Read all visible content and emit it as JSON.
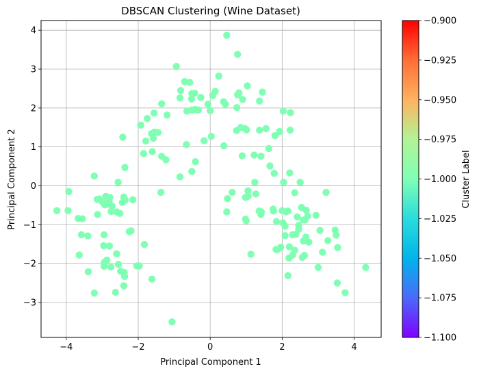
{
  "chart_data": {
    "type": "scatter",
    "title": "DBSCAN Clustering (Wine Dataset)",
    "xlabel": "Principal Component 1",
    "ylabel": "Principal Component 2",
    "xlim": [
      -4.7,
      4.75
    ],
    "ylim": [
      -3.9,
      4.25
    ],
    "xticks": [
      -4,
      -2,
      0,
      2,
      4
    ],
    "yticks": [
      -3,
      -2,
      -1,
      0,
      1,
      2,
      3,
      4
    ],
    "grid": true,
    "point_color": "#80ffb4",
    "colorbar": {
      "label": "Cluster Label",
      "range": [
        -1.1,
        -0.9
      ],
      "ticks": [
        "-0.900",
        "-0.925",
        "-0.950",
        "-0.975",
        "-1.000",
        "-1.025",
        "-1.050",
        "-1.075",
        "-1.100"
      ],
      "colormap": "rainbow"
    },
    "series": [
      {
        "cluster_label": -1,
        "points": [
          [
            0.46,
            3.87
          ],
          [
            0.76,
            3.38
          ],
          [
            -0.94,
            3.07
          ],
          [
            0.24,
            2.82
          ],
          [
            -0.71,
            2.68
          ],
          [
            -0.57,
            2.66
          ],
          [
            1.03,
            2.57
          ],
          [
            -0.82,
            2.45
          ],
          [
            1.45,
            2.41
          ],
          [
            0.14,
            2.43
          ],
          [
            -0.43,
            2.38
          ],
          [
            -0.51,
            2.37
          ],
          [
            0.76,
            2.34
          ],
          [
            0.8,
            2.39
          ],
          [
            -0.52,
            2.23
          ],
          [
            -0.84,
            2.26
          ],
          [
            -0.26,
            2.27
          ],
          [
            0.07,
            2.32
          ],
          [
            0.9,
            2.22
          ],
          [
            -1.35,
            2.11
          ],
          [
            0.37,
            2.16
          ],
          [
            0.42,
            2.1
          ],
          [
            -0.06,
            2.1
          ],
          [
            1.37,
            2.18
          ],
          [
            0.74,
            2.01
          ],
          [
            -0.51,
            1.95
          ],
          [
            -0.65,
            1.92
          ],
          [
            -0.33,
            1.95
          ],
          [
            -0.42,
            1.96
          ],
          [
            0.0,
            1.93
          ],
          [
            -1.75,
            1.73
          ],
          [
            -1.56,
            1.87
          ],
          [
            -1.2,
            1.82
          ],
          [
            -1.93,
            1.56
          ],
          [
            2.03,
            1.92
          ],
          [
            2.23,
            1.88
          ],
          [
            0.85,
            1.5
          ],
          [
            0.73,
            1.42
          ],
          [
            1.01,
            1.44
          ],
          [
            1.37,
            1.43
          ],
          [
            1.55,
            1.47
          ],
          [
            1.93,
            1.4
          ],
          [
            2.22,
            1.43
          ],
          [
            0.97,
            1.47
          ],
          [
            1.8,
            1.29
          ],
          [
            -1.55,
            1.38
          ],
          [
            -1.63,
            1.34
          ],
          [
            -1.45,
            1.37
          ],
          [
            -2.43,
            1.25
          ],
          [
            -1.58,
            1.22
          ],
          [
            -1.79,
            1.15
          ],
          [
            0.03,
            1.27
          ],
          [
            -0.17,
            1.16
          ],
          [
            -0.66,
            1.06
          ],
          [
            0.38,
            1.03
          ],
          [
            1.63,
            0.96
          ],
          [
            -1.85,
            0.83
          ],
          [
            -1.61,
            0.88
          ],
          [
            -1.35,
            0.76
          ],
          [
            -1.23,
            0.67
          ],
          [
            0.89,
            0.77
          ],
          [
            1.22,
            0.79
          ],
          [
            1.41,
            0.76
          ],
          [
            -0.41,
            0.62
          ],
          [
            1.66,
            0.51
          ],
          [
            2.21,
            0.33
          ],
          [
            1.78,
            0.32
          ],
          [
            -2.37,
            0.47
          ],
          [
            -0.51,
            0.37
          ],
          [
            -0.84,
            0.23
          ],
          [
            -3.22,
            0.25
          ],
          [
            -2.56,
            0.09
          ],
          [
            1.24,
            0.09
          ],
          [
            2.5,
            0.09
          ],
          [
            2.04,
            0.09
          ],
          [
            -3.93,
            -0.15
          ],
          [
            1.05,
            -0.13
          ],
          [
            0.61,
            -0.17
          ],
          [
            3.22,
            -0.17
          ],
          [
            1.27,
            -0.21
          ],
          [
            2.35,
            -0.18
          ],
          [
            -1.37,
            -0.17
          ],
          [
            0.48,
            -0.33
          ],
          [
            -3.08,
            -0.34
          ],
          [
            -2.9,
            -0.27
          ],
          [
            -2.79,
            -0.3
          ],
          [
            -2.99,
            -0.42
          ],
          [
            -2.81,
            -0.38
          ],
          [
            -2.4,
            -0.29
          ],
          [
            -2.36,
            -0.37
          ],
          [
            -2.44,
            -0.43
          ],
          [
            -2.15,
            -0.36
          ],
          [
            -2.85,
            -0.47
          ],
          [
            -2.93,
            -0.49
          ],
          [
            -3.14,
            -0.35
          ],
          [
            -2.73,
            -0.52
          ],
          [
            1.05,
            -0.27
          ],
          [
            0.98,
            -0.3
          ],
          [
            2.0,
            -0.64
          ],
          [
            2.67,
            -0.63
          ],
          [
            2.54,
            -0.56
          ],
          [
            2.71,
            -0.78
          ],
          [
            2.94,
            -0.76
          ],
          [
            1.75,
            -0.6
          ],
          [
            1.76,
            -0.65
          ],
          [
            2.16,
            -0.65
          ],
          [
            2.1,
            -0.67
          ],
          [
            1.36,
            -0.65
          ],
          [
            1.42,
            -0.67
          ],
          [
            1.41,
            -0.74
          ],
          [
            0.46,
            -0.67
          ],
          [
            -4.26,
            -0.64
          ],
          [
            -3.95,
            -0.64
          ],
          [
            -3.67,
            -0.84
          ],
          [
            -3.55,
            -0.85
          ],
          [
            -3.13,
            -0.74
          ],
          [
            -2.75,
            -0.66
          ],
          [
            -2.6,
            -0.67
          ],
          [
            -2.51,
            -0.71
          ],
          [
            2.42,
            -0.8
          ],
          [
            2.59,
            -0.88
          ],
          [
            2.46,
            -1.02
          ],
          [
            2.63,
            -0.88
          ],
          [
            0.98,
            -0.86
          ],
          [
            1.0,
            -0.9
          ],
          [
            2.02,
            -0.95
          ],
          [
            1.84,
            -0.92
          ],
          [
            2.08,
            -1.04
          ],
          [
            2.46,
            -1.12
          ],
          [
            2.38,
            -1.25
          ],
          [
            3.05,
            -1.15
          ],
          [
            3.47,
            -1.14
          ],
          [
            -2.2,
            -1.16
          ],
          [
            -2.25,
            -1.18
          ],
          [
            -3.58,
            -1.26
          ],
          [
            -3.4,
            -1.29
          ],
          [
            -2.95,
            -1.26
          ],
          [
            2.29,
            -1.26
          ],
          [
            2.66,
            -1.32
          ],
          [
            3.27,
            -1.41
          ],
          [
            3.5,
            -1.27
          ],
          [
            2.08,
            -1.28
          ],
          [
            -3.64,
            -1.78
          ],
          [
            -2.96,
            -1.54
          ],
          [
            -2.8,
            -1.55
          ],
          [
            -1.83,
            -1.51
          ],
          [
            -2.6,
            -1.75
          ],
          [
            -2.87,
            -1.91
          ],
          [
            2.59,
            -1.42
          ],
          [
            2.74,
            -1.45
          ],
          [
            2.2,
            -1.57
          ],
          [
            2.35,
            -1.66
          ],
          [
            1.96,
            -1.58
          ],
          [
            2.29,
            -1.78
          ],
          [
            2.56,
            -1.84
          ],
          [
            2.62,
            -1.79
          ],
          [
            3.54,
            -1.59
          ],
          [
            3.12,
            -1.71
          ],
          [
            1.87,
            -1.64
          ],
          [
            1.83,
            -1.64
          ],
          [
            -2.94,
            -1.97
          ],
          [
            -2.55,
            -2.02
          ],
          [
            -2.76,
            -2.09
          ],
          [
            -2.95,
            -2.07
          ],
          [
            -2.04,
            -2.06
          ],
          [
            -2.39,
            -2.23
          ],
          [
            -1.97,
            -2.06
          ],
          [
            1.13,
            -1.76
          ],
          [
            2.19,
            -1.86
          ],
          [
            3.0,
            -2.1
          ],
          [
            4.32,
            -2.1
          ],
          [
            -3.39,
            -2.21
          ],
          [
            -2.49,
            -2.2
          ],
          [
            -2.38,
            -2.33
          ],
          [
            -1.62,
            -2.4
          ],
          [
            2.16,
            -2.31
          ],
          [
            3.53,
            -2.5
          ],
          [
            -2.4,
            -2.57
          ],
          [
            -3.22,
            -2.76
          ],
          [
            -2.63,
            -2.74
          ],
          [
            3.75,
            -2.75
          ],
          [
            -1.06,
            -3.5
          ]
        ]
      }
    ]
  }
}
